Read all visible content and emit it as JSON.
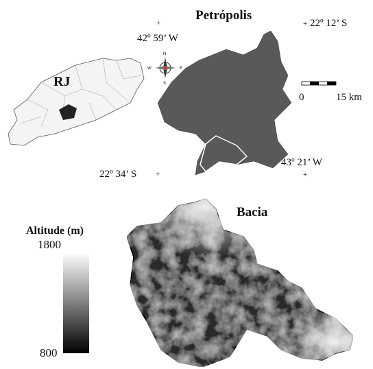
{
  "labels": {
    "state": "RJ",
    "municipality": "Petrópolis",
    "coordinates": [
      "42º 59’ W",
      "22º 12’ S",
      "22º 34’ S",
      "43º 21’ W"
    ]
  },
  "compass": {
    "north": "N",
    "south": "S",
    "east": "E",
    "west": "W"
  },
  "scale_bar": {
    "start": 0,
    "end": "15 km"
  },
  "basin": {
    "title": "Bacia",
    "legend": {
      "title": "Altitude (m)",
      "max": 1800,
      "min": 800
    }
  }
}
